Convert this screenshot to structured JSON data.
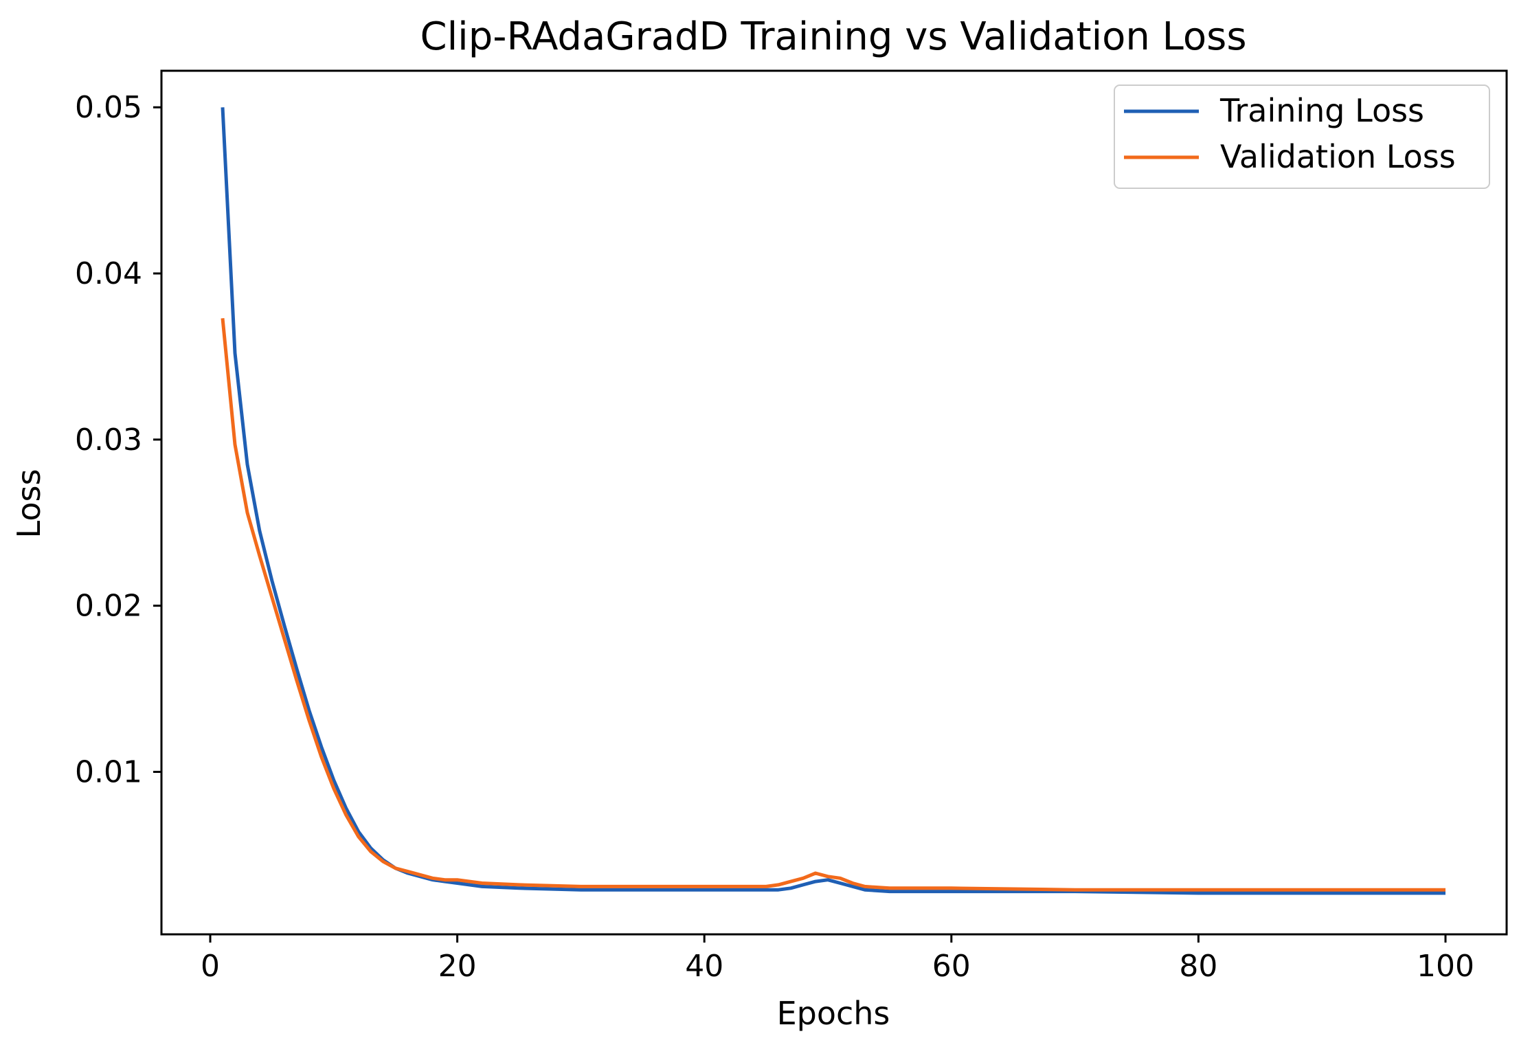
{
  "chart_data": {
    "type": "line",
    "title": "Clip-RAdaGradD Training vs Validation Loss",
    "xlabel": "Epochs",
    "ylabel": "Loss",
    "xlim": [
      -3.95,
      104.95
    ],
    "ylim": [
      0.00022,
      0.0522
    ],
    "xticks": [
      0,
      20,
      40,
      60,
      80,
      100
    ],
    "xtick_labels": [
      "0",
      "20",
      "40",
      "60",
      "80",
      "100"
    ],
    "yticks": [
      0.01,
      0.02,
      0.03,
      0.04,
      0.05
    ],
    "ytick_labels": [
      "0.01",
      "0.02",
      "0.03",
      "0.04",
      "0.05"
    ],
    "grid": false,
    "legend_position": "top-right",
    "x": [
      1,
      2,
      3,
      4,
      5,
      6,
      7,
      8,
      9,
      10,
      11,
      12,
      13,
      14,
      15,
      16,
      17,
      18,
      19,
      20,
      22,
      25,
      30,
      35,
      40,
      44,
      45,
      46,
      47,
      48,
      49,
      50,
      51,
      52,
      53,
      55,
      60,
      70,
      80,
      90,
      100
    ],
    "series": [
      {
        "name": "Training Loss",
        "color": "#1f5fb4",
        "values": [
          0.05,
          0.0352,
          0.0285,
          0.0245,
          0.0215,
          0.0188,
          0.0162,
          0.0137,
          0.0115,
          0.0095,
          0.0078,
          0.0064,
          0.0054,
          0.0047,
          0.0042,
          0.0039,
          0.0037,
          0.0035,
          0.0034,
          0.0033,
          0.0031,
          0.003,
          0.0029,
          0.0029,
          0.0029,
          0.0029,
          0.0029,
          0.0029,
          0.003,
          0.0032,
          0.0034,
          0.0035,
          0.0033,
          0.0031,
          0.0029,
          0.0028,
          0.0028,
          0.0028,
          0.0027,
          0.0027,
          0.0027
        ]
      },
      {
        "name": "Validation Loss",
        "color": "#f26a1b",
        "values": [
          0.0373,
          0.0297,
          0.0256,
          0.023,
          0.0205,
          0.018,
          0.0155,
          0.0131,
          0.0109,
          0.009,
          0.0074,
          0.0061,
          0.0052,
          0.0046,
          0.0042,
          0.004,
          0.0038,
          0.0036,
          0.0035,
          0.0035,
          0.0033,
          0.0032,
          0.0031,
          0.0031,
          0.0031,
          0.0031,
          0.0031,
          0.0032,
          0.0034,
          0.0036,
          0.0039,
          0.0037,
          0.0036,
          0.0033,
          0.0031,
          0.003,
          0.003,
          0.0029,
          0.0029,
          0.0029,
          0.0029
        ]
      }
    ]
  }
}
